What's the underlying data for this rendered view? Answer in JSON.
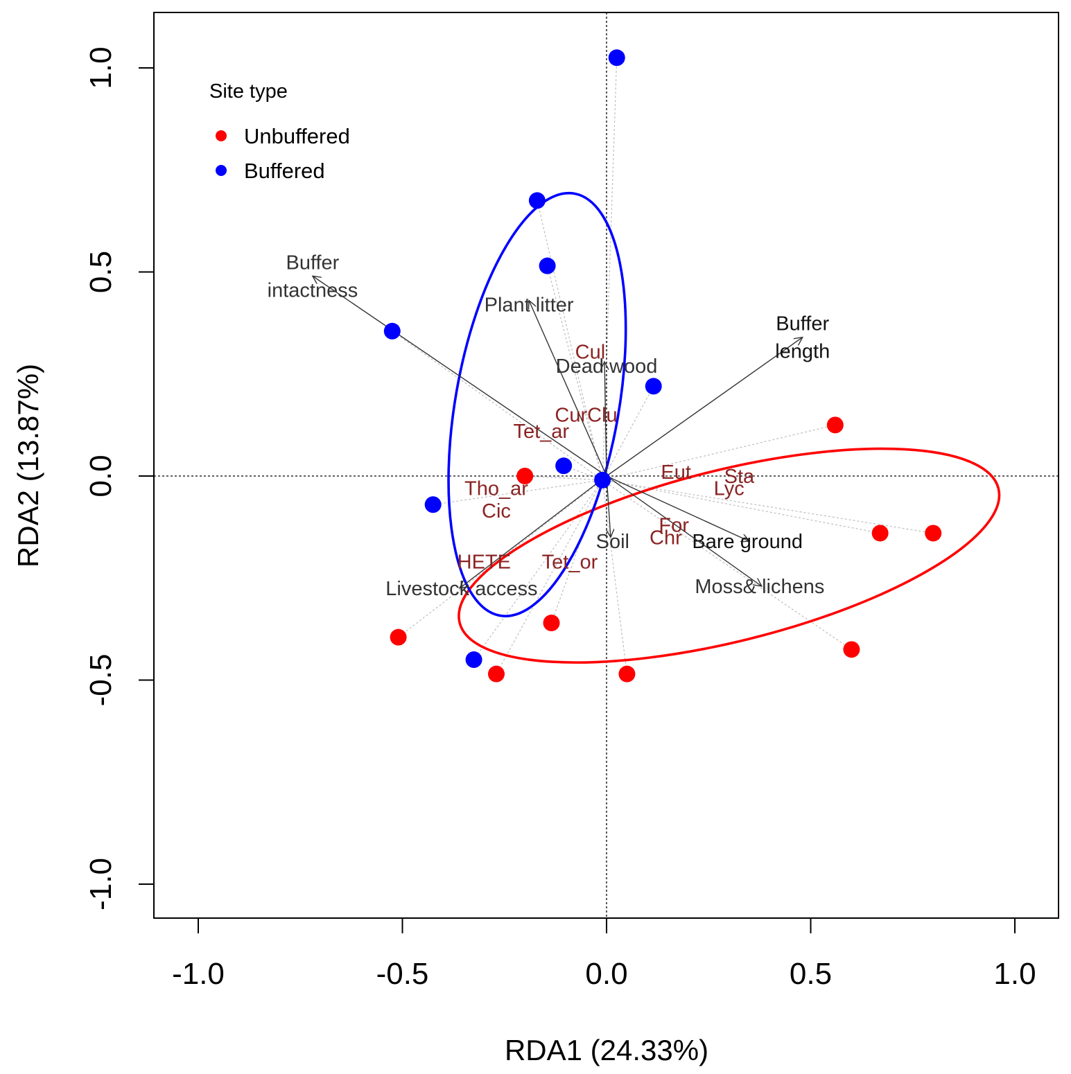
{
  "chart_data": {
    "type": "scatter",
    "subtype": "RDA biplot",
    "xlabel": "RDA1 (24.33%)",
    "ylabel": "RDA2 (13.87%)",
    "xlim": [
      -1.1,
      1.1
    ],
    "ylim": [
      -1.08,
      1.13
    ],
    "xticks": [
      -1.0,
      -0.5,
      0.0,
      0.5,
      1.0
    ],
    "yticks": [
      -1.0,
      -0.5,
      0.0,
      0.5,
      1.0
    ],
    "xtick_labels": [
      "-1.0",
      "-0.5",
      "0.0",
      "0.5",
      "1.0"
    ],
    "ytick_labels": [
      "-1.0",
      "-0.5",
      "0.0",
      "0.5",
      "1.0"
    ],
    "legend": {
      "title": "Site type",
      "position": "top-left",
      "entries": [
        {
          "label": "Unbuffered",
          "color": "#ff0000"
        },
        {
          "label": "Buffered",
          "color": "#0000ff"
        }
      ]
    },
    "centroid": [
      -0.01,
      -0.01
    ],
    "series": [
      {
        "name": "Unbuffered",
        "color": "#ff0000",
        "points": [
          [
            -0.2,
            0.0
          ],
          [
            0.56,
            0.125
          ],
          [
            0.67,
            -0.14
          ],
          [
            0.8,
            -0.14
          ],
          [
            0.6,
            -0.425
          ],
          [
            -0.135,
            -0.36
          ],
          [
            -0.27,
            -0.485
          ],
          [
            0.05,
            -0.485
          ],
          [
            -0.51,
            -0.395
          ]
        ],
        "ellipse": {
          "center": [
            0.3,
            -0.195
          ],
          "semi_axes": [
            0.68,
            0.21
          ],
          "angle_deg": 14
        }
      },
      {
        "name": "Buffered",
        "color": "#0000ff",
        "points": [
          [
            0.025,
            1.025
          ],
          [
            -0.17,
            0.675
          ],
          [
            -0.145,
            0.515
          ],
          [
            -0.525,
            0.355
          ],
          [
            0.115,
            0.22
          ],
          [
            -0.105,
            0.025
          ],
          [
            -0.425,
            -0.07
          ],
          [
            -0.325,
            -0.45
          ],
          [
            -0.01,
            -0.01
          ]
        ],
        "ellipse": {
          "center": [
            -0.17,
            0.175
          ],
          "semi_axes": [
            0.525,
            0.2
          ],
          "angle_deg": 80
        }
      }
    ],
    "env_vectors": [
      {
        "name": "Buffer\nintactness",
        "end": [
          -0.72,
          0.49
        ],
        "label_at": [
          -0.72,
          0.49
        ],
        "dark": false
      },
      {
        "name": "Plant litter",
        "end": [
          -0.19,
          0.43
        ],
        "label_at": [
          -0.19,
          0.42
        ],
        "dark": false
      },
      {
        "name": "Dead wood",
        "end": [
          -0.005,
          0.28
        ],
        "label_at": [
          0.0,
          0.27
        ],
        "dark": false
      },
      {
        "name": "Buffer\nlength",
        "end": [
          0.48,
          0.34
        ],
        "label_at": [
          0.48,
          0.34
        ],
        "dark": true
      },
      {
        "name": "Soil",
        "end": [
          0.01,
          -0.15
        ],
        "label_at": [
          0.015,
          -0.16
        ],
        "dark": false
      },
      {
        "name": "Bare ground",
        "end": [
          0.35,
          -0.16
        ],
        "label_at": [
          0.345,
          -0.16
        ],
        "dark": true
      },
      {
        "name": "Moss& lichens",
        "end": [
          0.38,
          -0.27
        ],
        "label_at": [
          0.375,
          -0.27
        ],
        "dark": false
      },
      {
        "name": "Livestock access",
        "end": [
          -0.36,
          -0.275
        ],
        "label_at": [
          -0.355,
          -0.275
        ],
        "dark": false
      }
    ],
    "species": [
      {
        "name": "Cul",
        "at": [
          -0.04,
          0.305
        ]
      },
      {
        "name": "CurClu",
        "at": [
          -0.05,
          0.15
        ]
      },
      {
        "name": "Tet_ar",
        "at": [
          -0.16,
          0.11
        ]
      },
      {
        "name": "Tho_ar",
        "at": [
          -0.27,
          -0.03
        ]
      },
      {
        "name": "Cic",
        "at": [
          -0.27,
          -0.085
        ]
      },
      {
        "name": "HETE",
        "at": [
          -0.3,
          -0.21
        ]
      },
      {
        "name": "Tet_or",
        "at": [
          -0.09,
          -0.21
        ]
      },
      {
        "name": "Eut",
        "at": [
          0.17,
          0.01
        ]
      },
      {
        "name": "Sta",
        "at": [
          0.325,
          0.0
        ]
      },
      {
        "name": "Lyc",
        "at": [
          0.3,
          -0.03
        ]
      },
      {
        "name": "For",
        "at": [
          0.165,
          -0.12
        ]
      },
      {
        "name": "Chr",
        "at": [
          0.145,
          -0.15
        ]
      }
    ]
  }
}
